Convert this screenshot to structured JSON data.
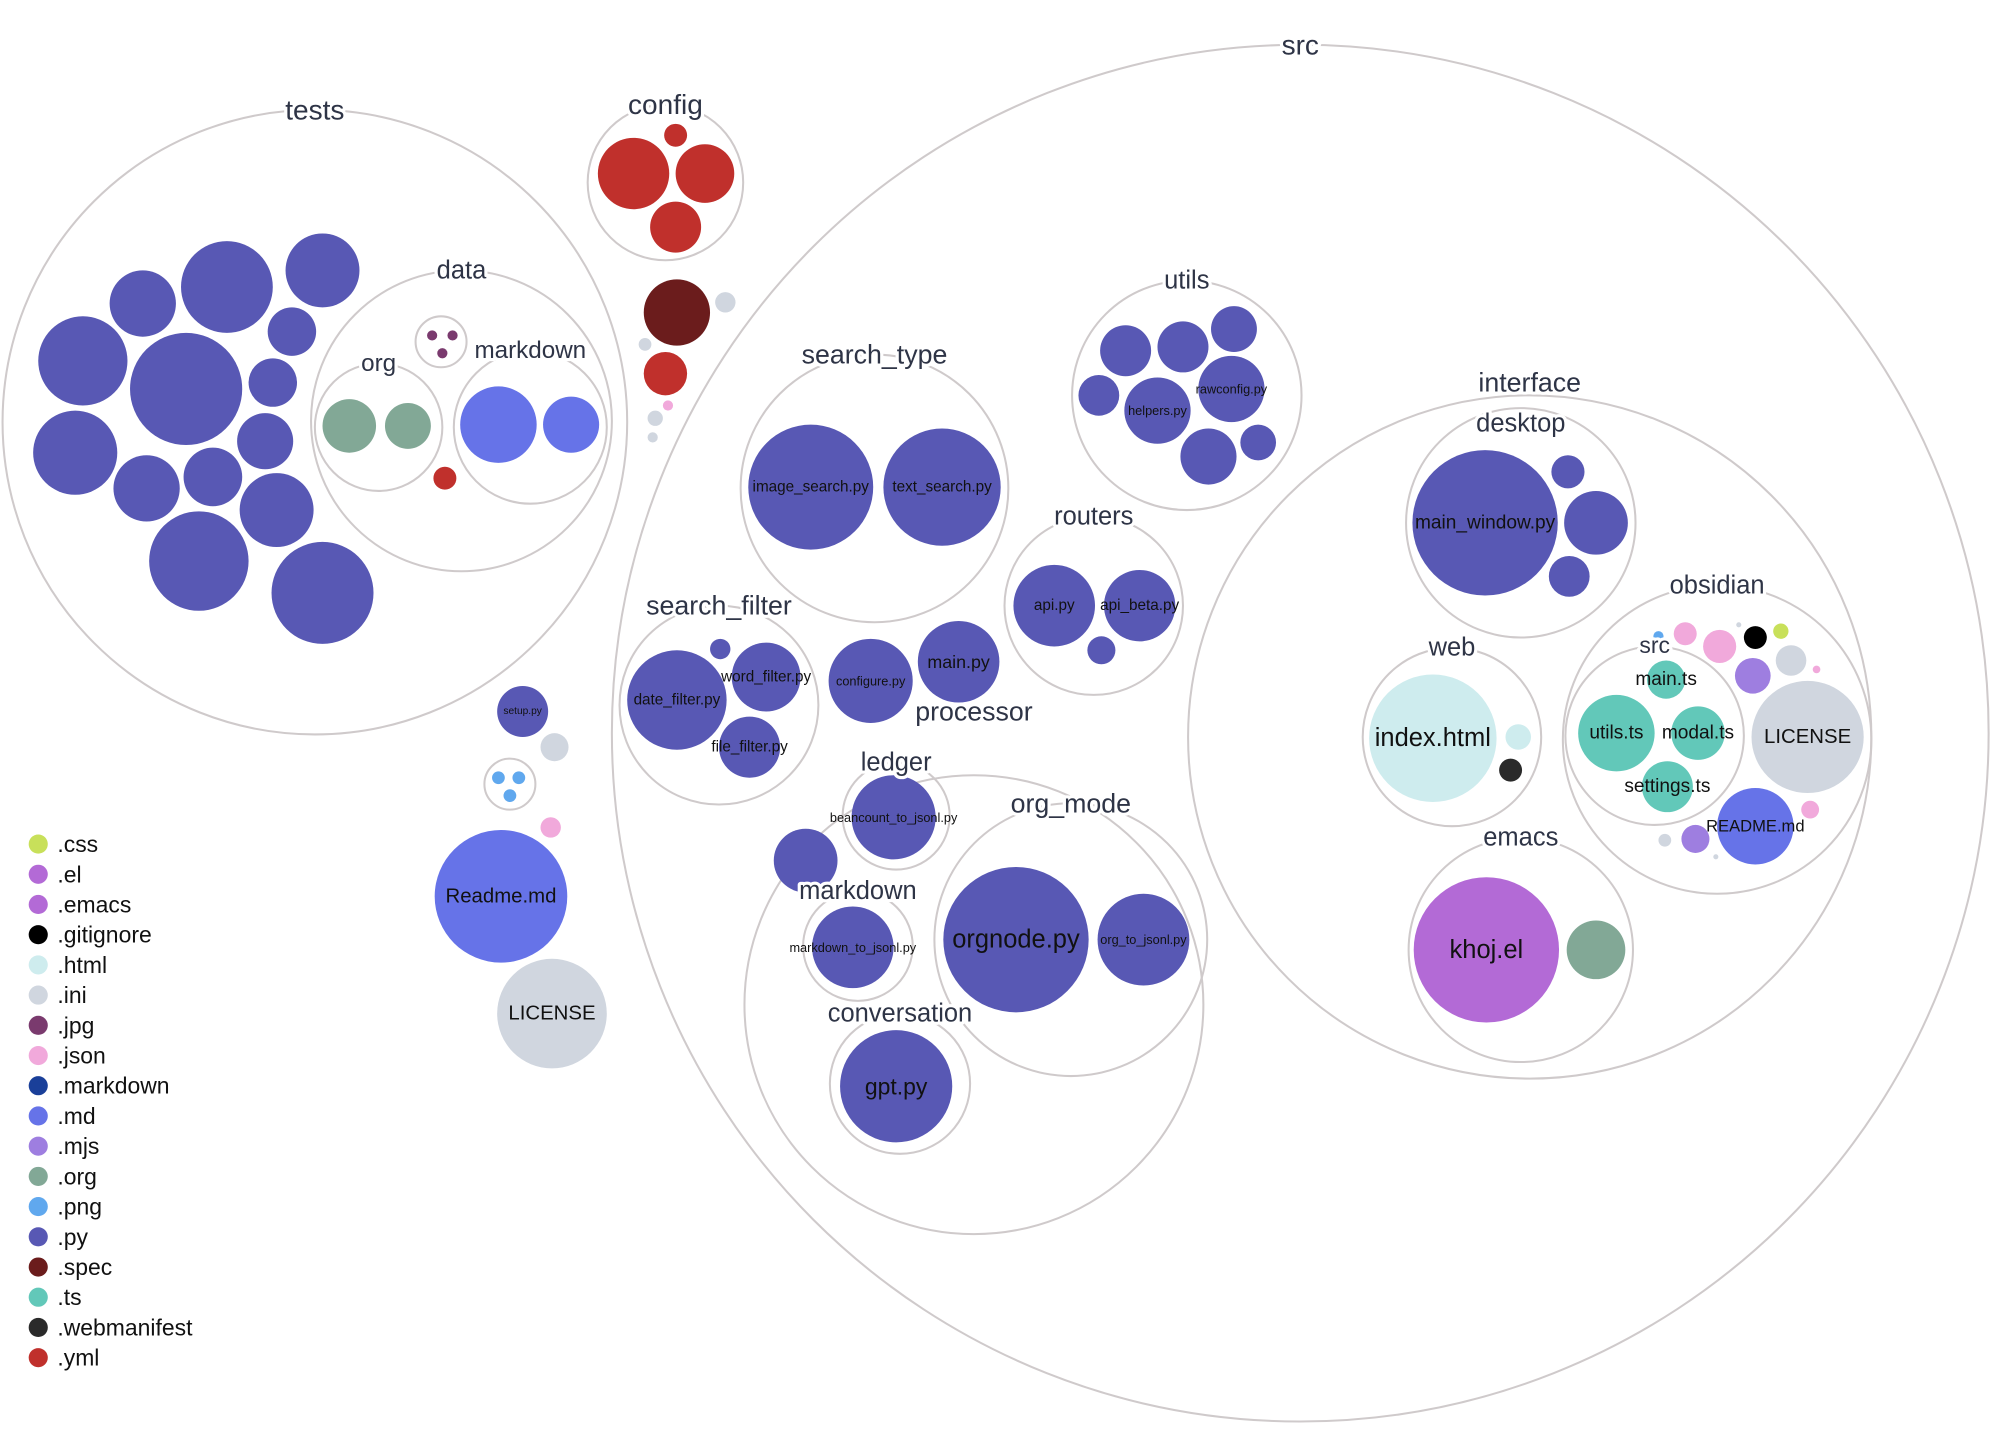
{
  "legend": [
    {
      "ext": ".css",
      "color": "#c8e05a"
    },
    {
      "ext": ".el",
      "color": "#b36ad6"
    },
    {
      "ext": ".emacs",
      "color": "#b36ad6"
    },
    {
      "ext": ".gitignore",
      "color": "#000000"
    },
    {
      "ext": ".html",
      "color": "#ceecee"
    },
    {
      "ext": ".ini",
      "color": "#d0d6df"
    },
    {
      "ext": ".jpg",
      "color": "#7a3a6e"
    },
    {
      "ext": ".json",
      "color": "#f1a9db"
    },
    {
      "ext": ".markdown",
      "color": "#1a3f99"
    },
    {
      "ext": ".md",
      "color": "#6673e8"
    },
    {
      "ext": ".mjs",
      "color": "#9e7ee0"
    },
    {
      "ext": ".org",
      "color": "#82a896"
    },
    {
      "ext": ".png",
      "color": "#60a8ee"
    },
    {
      "ext": ".py",
      "color": "#5858b4"
    },
    {
      "ext": ".spec",
      "color": "#6b1c1c"
    },
    {
      "ext": ".ts",
      "color": "#62c8b9"
    },
    {
      "ext": ".webmanifest",
      "color": "#2a2a2a"
    },
    {
      "ext": ".yml",
      "color": "#c0302c"
    }
  ],
  "folders": {
    "tests": "tests",
    "data": "data",
    "org": "org",
    "markdown_data": "markdown",
    "config": "config",
    "src": "src",
    "utils": "utils",
    "search_type": "search_type",
    "routers": "routers",
    "search_filter": "search_filter",
    "processor": "processor",
    "ledger": "ledger",
    "markdown_proc": "markdown",
    "org_mode": "org_mode",
    "conversation": "conversation",
    "interface": "interface",
    "desktop": "desktop",
    "web": "web",
    "obsidian": "obsidian",
    "obsidian_src": "src",
    "emacs": "emacs"
  },
  "files": {
    "setup": {
      "name": "setup.py",
      "ext": ".py"
    },
    "readme_root": {
      "name": "Readme.md",
      "ext": ".md"
    },
    "license_root": {
      "name": "LICENSE",
      "ext": ".ini"
    },
    "image_search": {
      "name": "image_search.py",
      "ext": ".py"
    },
    "text_search": {
      "name": "text_search.py",
      "ext": ".py"
    },
    "helpers": {
      "name": "helpers.py",
      "ext": ".py"
    },
    "rawconfig": {
      "name": "rawconfig.py",
      "ext": ".py"
    },
    "api": {
      "name": "api.py",
      "ext": ".py"
    },
    "api_beta": {
      "name": "api_beta.py",
      "ext": ".py"
    },
    "date_filter": {
      "name": "date_filter.py",
      "ext": ".py"
    },
    "word_filter": {
      "name": "word_filter.py",
      "ext": ".py"
    },
    "file_filter": {
      "name": "file_filter.py",
      "ext": ".py"
    },
    "configure": {
      "name": "configure.py",
      "ext": ".py"
    },
    "main_py": {
      "name": "main.py",
      "ext": ".py"
    },
    "beancount": {
      "name": "beancount_to_jsonl.py",
      "ext": ".py"
    },
    "markdown_to_jsonl": {
      "name": "markdown_to_jsonl.py",
      "ext": ".py"
    },
    "orgnode": {
      "name": "orgnode.py",
      "ext": ".py"
    },
    "org_to_jsonl": {
      "name": "org_to_jsonl.py",
      "ext": ".py"
    },
    "gpt": {
      "name": "gpt.py",
      "ext": ".py"
    },
    "main_window": {
      "name": "main_window.py",
      "ext": ".py"
    },
    "index_html": {
      "name": "index.html",
      "ext": ".html"
    },
    "khoj_el": {
      "name": "khoj.el",
      "ext": ".el"
    },
    "main_ts": {
      "name": "main.ts",
      "ext": ".ts"
    },
    "utils_ts": {
      "name": "utils.ts",
      "ext": ".ts"
    },
    "modal_ts": {
      "name": "modal.ts",
      "ext": ".ts"
    },
    "settings_ts": {
      "name": "settings.ts",
      "ext": ".ts"
    },
    "license_obs": {
      "name": "LICENSE",
      "ext": ".ini"
    },
    "readme_obs": {
      "name": "README.md",
      "ext": ".md"
    }
  }
}
